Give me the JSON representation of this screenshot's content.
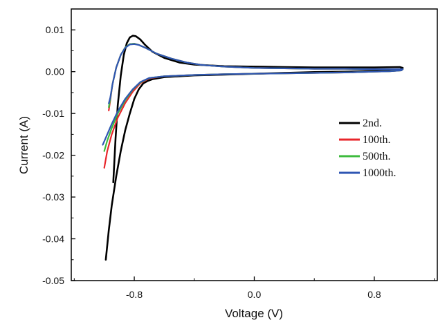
{
  "chart_data": {
    "type": "line",
    "title": "",
    "xlabel": "Voltage (V)",
    "ylabel": "Current (A)",
    "xlim": [
      -1.22,
      1.22
    ],
    "ylim": [
      -0.05,
      0.015
    ],
    "xticks": [
      -0.8,
      0.0,
      0.8
    ],
    "xtick_labels": [
      "-0.8",
      "0.0",
      "0.8"
    ],
    "yticks": [
      -0.05,
      -0.04,
      -0.03,
      -0.02,
      -0.01,
      0.0,
      0.01
    ],
    "ytick_labels": [
      "-0.05",
      "-0.04",
      "-0.03",
      "-0.02",
      "-0.01",
      "0.00",
      "0.01"
    ],
    "grid": false,
    "legend_position": "right",
    "series": [
      {
        "name": "2nd.",
        "color": "#000000",
        "points": [
          [
            -0.99,
            -0.045
          ],
          [
            -0.97,
            -0.038
          ],
          [
            -0.95,
            -0.032
          ],
          [
            -0.92,
            -0.025
          ],
          [
            -0.89,
            -0.019
          ],
          [
            -0.86,
            -0.014
          ],
          [
            -0.83,
            -0.01
          ],
          [
            -0.8,
            -0.0065
          ],
          [
            -0.77,
            -0.0042
          ],
          [
            -0.74,
            -0.0028
          ],
          [
            -0.71,
            -0.0022
          ],
          [
            -0.68,
            -0.0018
          ],
          [
            -0.6,
            -0.0013
          ],
          [
            -0.4,
            -0.0009
          ],
          [
            -0.2,
            -0.0007
          ],
          [
            0.0,
            -0.0005
          ],
          [
            0.2,
            -0.0003
          ],
          [
            0.4,
            -0.0001
          ],
          [
            0.6,
            0.0
          ],
          [
            0.8,
            0.0002
          ],
          [
            0.9,
            0.0003
          ],
          [
            0.97,
            0.0005
          ],
          [
            0.99,
            0.0009
          ],
          [
            0.97,
            0.0011
          ],
          [
            0.8,
            0.001
          ],
          [
            0.6,
            0.001
          ],
          [
            0.4,
            0.001
          ],
          [
            0.2,
            0.0011
          ],
          [
            0.0,
            0.0012
          ],
          [
            -0.2,
            0.0013
          ],
          [
            -0.4,
            0.0017
          ],
          [
            -0.5,
            0.0022
          ],
          [
            -0.6,
            0.0033
          ],
          [
            -0.68,
            0.0048
          ],
          [
            -0.73,
            0.0065
          ],
          [
            -0.76,
            0.0077
          ],
          [
            -0.79,
            0.0085
          ],
          [
            -0.81,
            0.0086
          ],
          [
            -0.83,
            0.0082
          ],
          [
            -0.85,
            0.0068
          ],
          [
            -0.87,
            0.004
          ],
          [
            -0.89,
            -0.001
          ],
          [
            -0.91,
            -0.008
          ],
          [
            -0.925,
            -0.016
          ],
          [
            -0.94,
            -0.0265
          ]
        ]
      },
      {
        "name": "100th.",
        "color": "#e8262b",
        "points": [
          [
            -1.0,
            -0.023
          ],
          [
            -0.98,
            -0.019
          ],
          [
            -0.95,
            -0.015
          ],
          [
            -0.91,
            -0.011
          ],
          [
            -0.86,
            -0.0075
          ],
          [
            -0.81,
            -0.0048
          ],
          [
            -0.76,
            -0.0028
          ],
          [
            -0.7,
            -0.0016
          ],
          [
            -0.6,
            -0.0011
          ],
          [
            -0.4,
            -0.0008
          ],
          [
            -0.2,
            -0.0006
          ],
          [
            0.0,
            -0.0005
          ],
          [
            0.2,
            -0.0004
          ],
          [
            0.4,
            -0.0003
          ],
          [
            0.6,
            -0.0002
          ],
          [
            0.8,
            0.0
          ],
          [
            0.9,
            0.0001
          ],
          [
            0.98,
            0.0003
          ],
          [
            0.99,
            0.0006
          ],
          [
            0.97,
            0.0006
          ],
          [
            0.8,
            0.0006
          ],
          [
            0.6,
            0.0007
          ],
          [
            0.4,
            0.0007
          ],
          [
            0.2,
            0.0008
          ],
          [
            0.0,
            0.0009
          ],
          [
            -0.2,
            0.0012
          ],
          [
            -0.35,
            0.0016
          ],
          [
            -0.45,
            0.0022
          ],
          [
            -0.55,
            0.0031
          ],
          [
            -0.65,
            0.0043
          ],
          [
            -0.72,
            0.0056
          ],
          [
            -0.77,
            0.0064
          ],
          [
            -0.8,
            0.0067
          ],
          [
            -0.83,
            0.0066
          ],
          [
            -0.86,
            0.0058
          ],
          [
            -0.89,
            0.004
          ],
          [
            -0.92,
            0.001
          ],
          [
            -0.945,
            -0.003
          ],
          [
            -0.96,
            -0.0068
          ],
          [
            -0.97,
            -0.0093
          ]
        ]
      },
      {
        "name": "500th.",
        "color": "#3dbb3d",
        "points": [
          [
            -1.0,
            -0.019
          ],
          [
            -0.98,
            -0.0165
          ],
          [
            -0.95,
            -0.0135
          ],
          [
            -0.91,
            -0.01
          ],
          [
            -0.86,
            -0.0068
          ],
          [
            -0.81,
            -0.0043
          ],
          [
            -0.76,
            -0.0026
          ],
          [
            -0.7,
            -0.0015
          ],
          [
            -0.6,
            -0.0011
          ],
          [
            -0.4,
            -0.0008
          ],
          [
            -0.2,
            -0.0006
          ],
          [
            0.0,
            -0.0005
          ],
          [
            0.2,
            -0.0004
          ],
          [
            0.4,
            -0.0003
          ],
          [
            0.6,
            -0.0002
          ],
          [
            0.8,
            0.0
          ],
          [
            0.9,
            0.0001
          ],
          [
            0.98,
            0.0003
          ],
          [
            0.99,
            0.0006
          ],
          [
            0.97,
            0.0006
          ],
          [
            0.8,
            0.0006
          ],
          [
            0.6,
            0.0007
          ],
          [
            0.4,
            0.0007
          ],
          [
            0.2,
            0.0008
          ],
          [
            0.0,
            0.0009
          ],
          [
            -0.2,
            0.0012
          ],
          [
            -0.35,
            0.0016
          ],
          [
            -0.45,
            0.0022
          ],
          [
            -0.55,
            0.0031
          ],
          [
            -0.65,
            0.0043
          ],
          [
            -0.72,
            0.0056
          ],
          [
            -0.77,
            0.0064
          ],
          [
            -0.8,
            0.0067
          ],
          [
            -0.83,
            0.0066
          ],
          [
            -0.86,
            0.0058
          ],
          [
            -0.89,
            0.004
          ],
          [
            -0.92,
            0.001
          ],
          [
            -0.945,
            -0.003
          ],
          [
            -0.96,
            -0.0065
          ],
          [
            -0.97,
            -0.0085
          ]
        ]
      },
      {
        "name": "1000th.",
        "color": "#2f56b3",
        "points": [
          [
            -1.01,
            -0.0175
          ],
          [
            -0.98,
            -0.015
          ],
          [
            -0.95,
            -0.0125
          ],
          [
            -0.91,
            -0.0095
          ],
          [
            -0.86,
            -0.0065
          ],
          [
            -0.81,
            -0.0042
          ],
          [
            -0.76,
            -0.0025
          ],
          [
            -0.7,
            -0.0015
          ],
          [
            -0.6,
            -0.0011
          ],
          [
            -0.4,
            -0.0008
          ],
          [
            -0.2,
            -0.0006
          ],
          [
            0.0,
            -0.0005
          ],
          [
            0.2,
            -0.0004
          ],
          [
            0.4,
            -0.0003
          ],
          [
            0.6,
            -0.0002
          ],
          [
            0.8,
            0.0
          ],
          [
            0.9,
            0.0001
          ],
          [
            0.98,
            0.0003
          ],
          [
            0.99,
            0.0006
          ],
          [
            0.97,
            0.0006
          ],
          [
            0.8,
            0.0006
          ],
          [
            0.6,
            0.0007
          ],
          [
            0.4,
            0.0007
          ],
          [
            0.2,
            0.0008
          ],
          [
            0.0,
            0.0009
          ],
          [
            -0.2,
            0.0012
          ],
          [
            -0.35,
            0.0016
          ],
          [
            -0.45,
            0.0022
          ],
          [
            -0.55,
            0.0031
          ],
          [
            -0.65,
            0.0043
          ],
          [
            -0.72,
            0.0056
          ],
          [
            -0.77,
            0.0064
          ],
          [
            -0.8,
            0.0066
          ],
          [
            -0.83,
            0.0065
          ],
          [
            -0.86,
            0.0057
          ],
          [
            -0.89,
            0.004
          ],
          [
            -0.92,
            0.001
          ],
          [
            -0.945,
            -0.003
          ],
          [
            -0.96,
            -0.0062
          ],
          [
            -0.97,
            -0.0076
          ]
        ]
      }
    ]
  }
}
